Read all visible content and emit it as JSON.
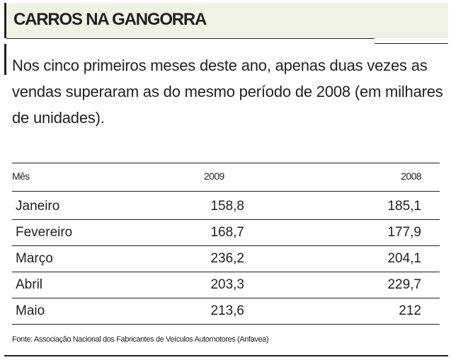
{
  "header": {
    "title": "CARROS NA GANGORRA"
  },
  "intro": {
    "text": "Nos cinco primeiros meses deste ano, apenas duas vezes as vendas superaram as do mesmo período de 2008 (em milhares de unidades)."
  },
  "table": {
    "columns": [
      "Mês",
      "2009",
      "2008"
    ]
  },
  "chart_data": {
    "type": "table",
    "title": "CARROS NA GANGORRA",
    "columns": [
      "Mês",
      "2009",
      "2008"
    ],
    "rows": [
      [
        "Janeiro",
        "158,8",
        "185,1"
      ],
      [
        "Fevereiro",
        "168,7",
        "177,9"
      ],
      [
        "Março",
        "236,2",
        "204,1"
      ],
      [
        "Abril",
        "203,3",
        "229,7"
      ],
      [
        "Maio",
        "213,6",
        "212"
      ]
    ]
  },
  "source": {
    "text": "Fonte: Associação Nacional dos Fabricantes de Veículos Automotores (Anfavea)"
  },
  "colors": {
    "header_bg": "#eef3e4",
    "text": "#231f20"
  }
}
